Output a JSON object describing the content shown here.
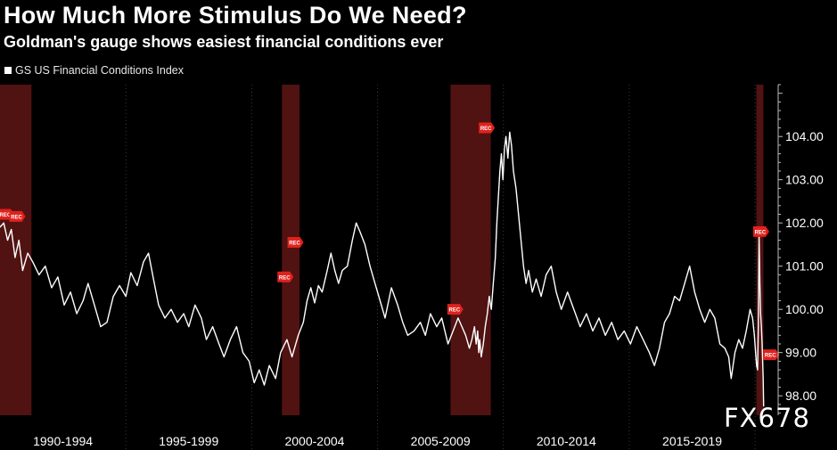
{
  "title": "How Much More Stimulus Do We Need?",
  "subtitle": "Goldman's gauge shows easiest financial conditions ever",
  "watermark": "FX678",
  "colors": {
    "background": "#000000",
    "line": "#ffffff",
    "recession_band": "#5a1414",
    "rec_marker": "#e0211c",
    "grid": "#3a3a3a"
  },
  "chart_data": {
    "type": "line",
    "legend": [
      {
        "label": "GS US Financial Conditions Index",
        "color": "#ffffff",
        "position": "top-left"
      }
    ],
    "x_period_labels": [
      "1990-1994",
      "1995-1999",
      "2000-2004",
      "2005-2009",
      "2010-2014",
      "2015-2019"
    ],
    "xlim": [
      1990.0,
      2020.35
    ],
    "ylim": [
      97.55,
      105.2
    ],
    "y_ticks": [
      98.0,
      99.0,
      100.0,
      101.0,
      102.0,
      103.0,
      104.0
    ],
    "y_tick_labels": [
      "98.00",
      "99.00",
      "100.00",
      "101.00",
      "102.00",
      "103.00",
      "104.00"
    ],
    "grid": "vertical dotted at period boundaries",
    "recession_bands": [
      [
        1990.0,
        1991.25
      ],
      [
        2001.2,
        2001.9
      ],
      [
        2007.9,
        2009.5
      ],
      [
        2020.05,
        2020.33
      ]
    ],
    "recession_markers": [
      {
        "label": "REC",
        "x": 1990.1,
        "y": 102.2
      },
      {
        "label": "REC",
        "x": 1990.55,
        "y": 102.15
      },
      {
        "label": "REC",
        "x": 2001.2,
        "y": 100.75
      },
      {
        "label": "REC",
        "x": 2001.6,
        "y": 101.55
      },
      {
        "label": "REC",
        "x": 2007.95,
        "y": 100.0
      },
      {
        "label": "REC",
        "x": 2009.2,
        "y": 104.2
      },
      {
        "label": "REC",
        "x": 2020.1,
        "y": 101.8
      },
      {
        "label": "REC",
        "x": 2020.5,
        "y": 98.95
      }
    ],
    "series": [
      {
        "name": "GS US Financial Conditions Index",
        "points": [
          [
            1990.0,
            101.9
          ],
          [
            1990.15,
            102.0
          ],
          [
            1990.3,
            101.6
          ],
          [
            1990.45,
            101.85
          ],
          [
            1990.6,
            101.2
          ],
          [
            1990.75,
            101.6
          ],
          [
            1990.9,
            100.9
          ],
          [
            1991.1,
            101.3
          ],
          [
            1991.3,
            101.1
          ],
          [
            1991.55,
            100.8
          ],
          [
            1991.8,
            101.0
          ],
          [
            1992.05,
            100.5
          ],
          [
            1992.3,
            100.75
          ],
          [
            1992.55,
            100.1
          ],
          [
            1992.8,
            100.4
          ],
          [
            1993.05,
            99.9
          ],
          [
            1993.3,
            100.2
          ],
          [
            1993.5,
            100.6
          ],
          [
            1993.75,
            100.1
          ],
          [
            1994.0,
            99.6
          ],
          [
            1994.25,
            99.7
          ],
          [
            1994.5,
            100.3
          ],
          [
            1994.75,
            100.55
          ],
          [
            1995.0,
            100.3
          ],
          [
            1995.2,
            100.85
          ],
          [
            1995.45,
            100.55
          ],
          [
            1995.7,
            101.1
          ],
          [
            1995.9,
            101.3
          ],
          [
            1996.1,
            100.7
          ],
          [
            1996.3,
            100.1
          ],
          [
            1996.55,
            99.8
          ],
          [
            1996.8,
            100.0
          ],
          [
            1997.05,
            99.7
          ],
          [
            1997.3,
            99.9
          ],
          [
            1997.5,
            99.6
          ],
          [
            1997.75,
            100.1
          ],
          [
            1998.0,
            99.8
          ],
          [
            1998.2,
            99.3
          ],
          [
            1998.45,
            99.6
          ],
          [
            1998.7,
            99.2
          ],
          [
            1998.9,
            98.9
          ],
          [
            1999.15,
            99.3
          ],
          [
            1999.4,
            99.6
          ],
          [
            1999.65,
            99.0
          ],
          [
            1999.9,
            98.8
          ],
          [
            2000.1,
            98.3
          ],
          [
            2000.3,
            98.6
          ],
          [
            2000.5,
            98.25
          ],
          [
            2000.7,
            98.7
          ],
          [
            2000.95,
            98.4
          ],
          [
            2001.15,
            99.0
          ],
          [
            2001.4,
            99.3
          ],
          [
            2001.6,
            98.9
          ],
          [
            2001.85,
            99.4
          ],
          [
            2002.05,
            99.7
          ],
          [
            2002.2,
            100.2
          ],
          [
            2002.35,
            100.5
          ],
          [
            2002.5,
            100.15
          ],
          [
            2002.65,
            100.55
          ],
          [
            2002.8,
            100.4
          ],
          [
            2003.0,
            100.9
          ],
          [
            2003.15,
            101.3
          ],
          [
            2003.3,
            100.9
          ],
          [
            2003.45,
            100.6
          ],
          [
            2003.6,
            100.9
          ],
          [
            2003.8,
            101.0
          ],
          [
            2004.0,
            101.6
          ],
          [
            2004.15,
            102.0
          ],
          [
            2004.3,
            101.8
          ],
          [
            2004.5,
            101.5
          ],
          [
            2004.7,
            101.0
          ],
          [
            2004.9,
            100.6
          ],
          [
            2005.1,
            100.2
          ],
          [
            2005.3,
            99.8
          ],
          [
            2005.55,
            100.5
          ],
          [
            2005.8,
            100.1
          ],
          [
            2006.0,
            99.7
          ],
          [
            2006.2,
            99.4
          ],
          [
            2006.45,
            99.5
          ],
          [
            2006.7,
            99.7
          ],
          [
            2006.9,
            99.4
          ],
          [
            2007.1,
            99.9
          ],
          [
            2007.35,
            99.6
          ],
          [
            2007.55,
            99.8
          ],
          [
            2007.8,
            99.2
          ],
          [
            2008.0,
            99.5
          ],
          [
            2008.2,
            99.8
          ],
          [
            2008.35,
            99.6
          ],
          [
            2008.5,
            99.4
          ],
          [
            2008.65,
            99.1
          ],
          [
            2008.75,
            99.3
          ],
          [
            2008.85,
            99.6
          ],
          [
            2008.92,
            99.2
          ],
          [
            2008.98,
            99.5
          ],
          [
            2009.02,
            99.0
          ],
          [
            2009.06,
            99.3
          ],
          [
            2009.12,
            98.9
          ],
          [
            2009.2,
            99.2
          ],
          [
            2009.28,
            99.6
          ],
          [
            2009.36,
            99.9
          ],
          [
            2009.44,
            100.3
          ],
          [
            2009.52,
            100.0
          ],
          [
            2009.6,
            100.6
          ],
          [
            2009.68,
            101.2
          ],
          [
            2009.74,
            102.0
          ],
          [
            2009.8,
            102.6
          ],
          [
            2009.86,
            103.2
          ],
          [
            2009.92,
            103.6
          ],
          [
            2009.98,
            103.0
          ],
          [
            2010.04,
            103.7
          ],
          [
            2010.1,
            104.0
          ],
          [
            2010.18,
            103.5
          ],
          [
            2010.25,
            104.1
          ],
          [
            2010.32,
            103.8
          ],
          [
            2010.4,
            103.2
          ],
          [
            2010.5,
            102.8
          ],
          [
            2010.6,
            102.2
          ],
          [
            2010.7,
            101.6
          ],
          [
            2010.8,
            101.0
          ],
          [
            2010.9,
            100.6
          ],
          [
            2011.0,
            100.9
          ],
          [
            2011.15,
            100.4
          ],
          [
            2011.3,
            100.7
          ],
          [
            2011.5,
            100.3
          ],
          [
            2011.7,
            100.8
          ],
          [
            2011.9,
            101.0
          ],
          [
            2012.1,
            100.4
          ],
          [
            2012.3,
            100.0
          ],
          [
            2012.55,
            100.4
          ],
          [
            2012.8,
            100.0
          ],
          [
            2013.05,
            99.6
          ],
          [
            2013.3,
            99.9
          ],
          [
            2013.55,
            99.5
          ],
          [
            2013.8,
            99.8
          ],
          [
            2014.05,
            99.4
          ],
          [
            2014.3,
            99.7
          ],
          [
            2014.55,
            99.3
          ],
          [
            2014.8,
            99.5
          ],
          [
            2015.05,
            99.2
          ],
          [
            2015.3,
            99.6
          ],
          [
            2015.55,
            99.3
          ],
          [
            2015.8,
            99.0
          ],
          [
            2016.0,
            98.7
          ],
          [
            2016.2,
            99.1
          ],
          [
            2016.4,
            99.7
          ],
          [
            2016.6,
            99.9
          ],
          [
            2016.8,
            100.3
          ],
          [
            2017.0,
            100.2
          ],
          [
            2017.2,
            100.6
          ],
          [
            2017.4,
            101.0
          ],
          [
            2017.6,
            100.4
          ],
          [
            2017.8,
            100.0
          ],
          [
            2018.0,
            99.7
          ],
          [
            2018.2,
            100.0
          ],
          [
            2018.4,
            99.8
          ],
          [
            2018.6,
            99.2
          ],
          [
            2018.8,
            99.1
          ],
          [
            2018.95,
            98.9
          ],
          [
            2019.05,
            98.4
          ],
          [
            2019.2,
            99.0
          ],
          [
            2019.35,
            99.3
          ],
          [
            2019.5,
            99.1
          ],
          [
            2019.65,
            99.5
          ],
          [
            2019.8,
            100.0
          ],
          [
            2019.9,
            99.8
          ],
          [
            2019.97,
            99.4
          ],
          [
            2020.02,
            99.0
          ],
          [
            2020.06,
            98.7
          ],
          [
            2020.1,
            98.6
          ],
          [
            2020.13,
            99.7
          ],
          [
            2020.16,
            101.7
          ],
          [
            2020.19,
            100.6
          ],
          [
            2020.22,
            99.9
          ],
          [
            2020.25,
            99.6
          ],
          [
            2020.28,
            99.2
          ],
          [
            2020.3,
            98.8
          ],
          [
            2020.32,
            98.4
          ],
          [
            2020.34,
            97.75
          ]
        ]
      }
    ]
  }
}
